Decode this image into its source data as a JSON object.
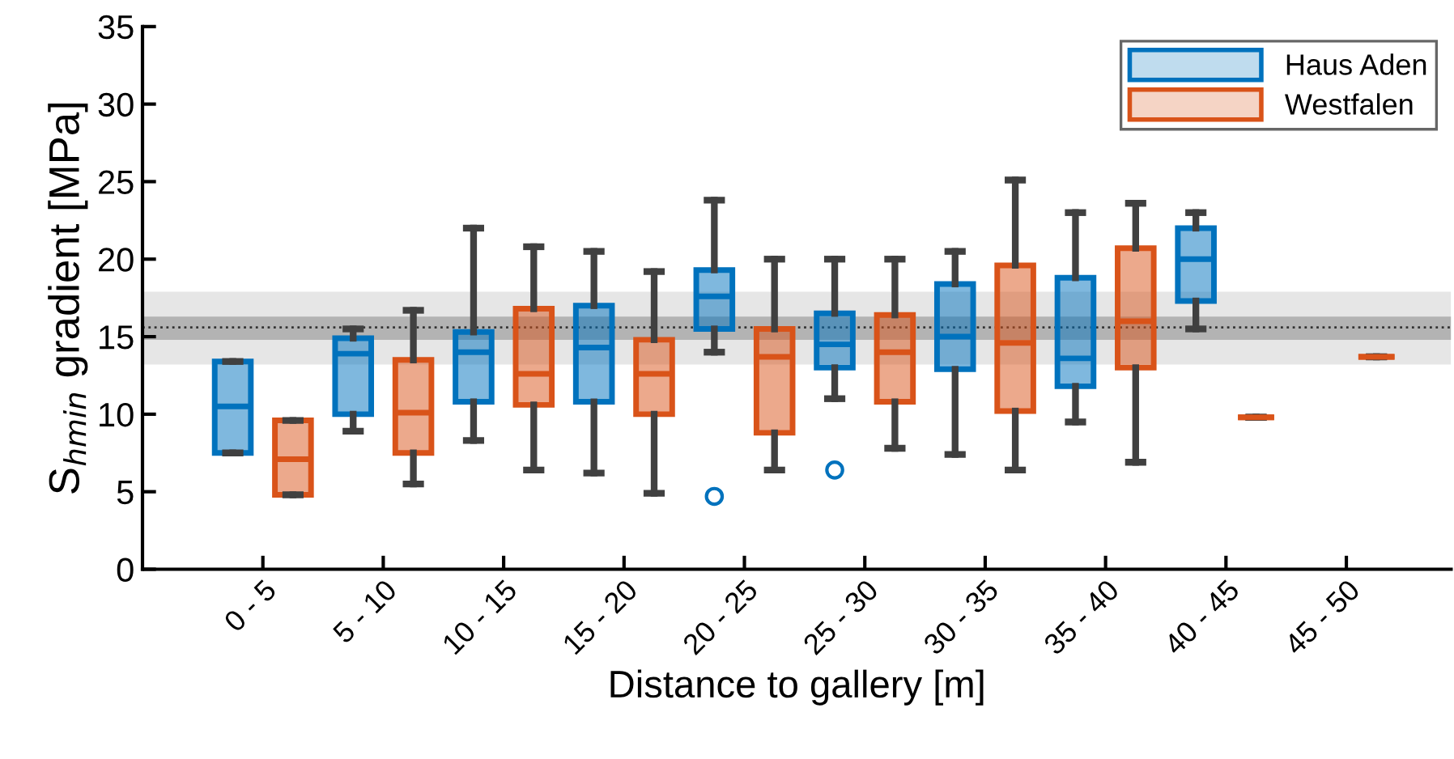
{
  "chart_data": {
    "type": "box",
    "xlabel": "Distance to gallery [m]",
    "ylabel": "S$_{hmin}$ gradient [MPa]",
    "categories": [
      "0 - 5",
      "5 - 10",
      "10 - 15",
      "15 - 20",
      "20 - 25",
      "25 - 30",
      "30 - 35",
      "35 - 40",
      "40 - 45",
      "45 - 50"
    ],
    "ylim": [
      0,
      35
    ],
    "yticks": [
      0,
      5,
      10,
      15,
      20,
      25,
      30,
      35
    ],
    "grid": false,
    "legend": "top right",
    "bands": [
      {
        "axis": "y",
        "from": 13.2,
        "to": 17.9,
        "color": "#e6e6e6"
      },
      {
        "axis": "y",
        "from": 14.8,
        "to": 16.3,
        "color": "#b3b3b3"
      }
    ],
    "ref_lines": [
      {
        "axis": "y",
        "value": 15.6,
        "color": "#333333",
        "line_style": "dotted"
      }
    ],
    "series": [
      {
        "name": "Haus Aden",
        "color": "#0072bd",
        "boxes": [
          {
            "low": 7.5,
            "q1": 7.5,
            "median": 10.5,
            "q3": 13.4,
            "high": 13.4
          },
          {
            "low": 8.9,
            "q1": 10.0,
            "median": 13.9,
            "q3": 14.9,
            "high": 15.5
          },
          {
            "low": 8.3,
            "q1": 10.8,
            "median": 14.0,
            "q3": 15.3,
            "high": 22.0
          },
          {
            "low": 6.2,
            "q1": 10.8,
            "median": 14.3,
            "q3": 17.0,
            "high": 20.5
          },
          {
            "low": 14.0,
            "q1": 15.5,
            "median": 17.6,
            "q3": 19.3,
            "high": 23.8,
            "outliers": [
              4.7
            ]
          },
          {
            "low": 11.0,
            "q1": 13.0,
            "median": 14.5,
            "q3": 16.5,
            "high": 20.0,
            "outliers": [
              6.4
            ]
          },
          {
            "low": 7.4,
            "q1": 12.9,
            "median": 15.0,
            "q3": 18.4,
            "high": 20.5
          },
          {
            "low": 9.5,
            "q1": 11.8,
            "median": 13.6,
            "q3": 18.8,
            "high": 23.0
          },
          {
            "low": 15.5,
            "q1": 17.3,
            "median": 20.0,
            "q3": 22.0,
            "high": 23.0
          },
          null
        ]
      },
      {
        "name": "Westfalen",
        "color": "#d95319",
        "boxes": [
          {
            "low": 4.8,
            "q1": 4.8,
            "median": 7.1,
            "q3": 9.6,
            "high": 9.6
          },
          {
            "low": 5.5,
            "q1": 7.5,
            "median": 10.1,
            "q3": 13.5,
            "high": 16.7
          },
          {
            "low": 6.4,
            "q1": 10.6,
            "median": 12.6,
            "q3": 16.8,
            "high": 20.8
          },
          {
            "low": 4.9,
            "q1": 10.0,
            "median": 12.6,
            "q3": 14.8,
            "high": 19.2
          },
          {
            "low": 6.4,
            "q1": 8.8,
            "median": 13.7,
            "q3": 15.5,
            "high": 20.0
          },
          {
            "low": 7.8,
            "q1": 10.8,
            "median": 14.0,
            "q3": 16.4,
            "high": 20.0
          },
          {
            "low": 6.4,
            "q1": 10.2,
            "median": 14.6,
            "q3": 19.6,
            "high": 25.1
          },
          {
            "low": 6.9,
            "q1": 13.0,
            "median": 16.0,
            "q3": 20.7,
            "high": 23.6
          },
          {
            "low": 9.8,
            "q1": 9.8,
            "median": 9.8,
            "q3": 9.8,
            "high": 9.8
          },
          {
            "low": 13.7,
            "q1": 13.7,
            "median": 13.7,
            "q3": 13.7,
            "high": 13.7
          }
        ]
      }
    ]
  }
}
